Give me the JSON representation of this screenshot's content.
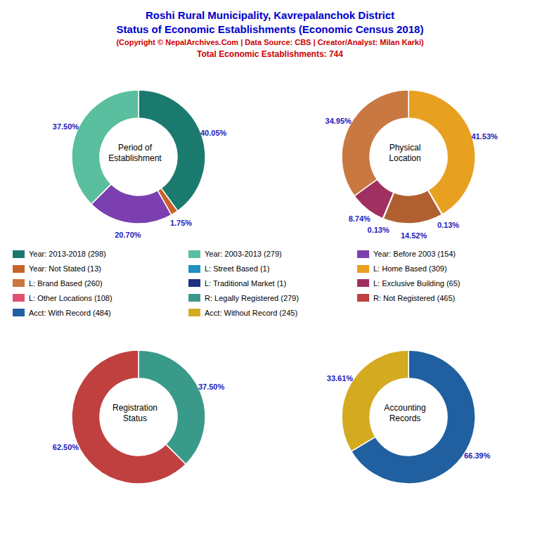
{
  "title": "Roshi Rural Municipality, Kavrepalanchok District\nStatus of Economic Establishments (Economic Census 2018)",
  "subtitle": "(Copyright © NepalArchives.Com | Data Source: CBS | Creator/Analyst: Milan Karki)\nTotal Economic Establishments: 744",
  "chart_data": [
    {
      "type": "pie",
      "title": "Period of\nEstablishment",
      "values": [
        40.05,
        1.75,
        20.7,
        37.5
      ],
      "value_labels": [
        "40.05%",
        "1.75%",
        "20.70%",
        "37.50%"
      ],
      "colors": [
        "#1a7a6e",
        "#c8622a",
        "#7b3fb0",
        "#5abf9e"
      ],
      "data_labels": true
    },
    {
      "type": "pie",
      "title": "Physical\nLocation",
      "values": [
        41.53,
        0.13,
        14.52,
        0.13,
        8.74,
        34.95
      ],
      "value_labels": [
        "41.53%",
        "0.13%",
        "14.52%",
        "0.13%",
        "8.74%",
        "34.95%"
      ],
      "colors": [
        "#e8a020",
        "#e05070",
        "#b06030",
        "#203080",
        "#a03060",
        "#c87840"
      ],
      "data_labels": true
    },
    {
      "type": "pie",
      "title": "Registration\nStatus",
      "values": [
        37.5,
        62.5
      ],
      "value_labels": [
        "37.50%",
        "62.50%"
      ],
      "colors": [
        "#3a9a8a",
        "#c04040"
      ],
      "data_labels": true
    },
    {
      "type": "pie",
      "title": "Accounting\nRecords",
      "values": [
        66.39,
        33.61
      ],
      "value_labels": [
        "66.39%",
        "33.61%"
      ],
      "colors": [
        "#2060a0",
        "#d4aa20"
      ],
      "data_labels": true
    }
  ],
  "legend_entries": [
    {
      "name": "Year: 2013-2018 (298)",
      "color": "#1a7a6e"
    },
    {
      "name": "Year: 2003-2013 (279)",
      "color": "#5abf9e"
    },
    {
      "name": "Year: Before 2003 (154)",
      "color": "#7b3fb0"
    },
    {
      "name": "Year: Not Stated (13)",
      "color": "#c8622a"
    },
    {
      "name": "L: Street Based (1)",
      "color": "#2090c0"
    },
    {
      "name": "L: Home Based (309)",
      "color": "#e8a020"
    },
    {
      "name": "L: Brand Based (260)",
      "color": "#c87840"
    },
    {
      "name": "L: Traditional Market (1)",
      "color": "#203080"
    },
    {
      "name": "L: Exclusive Building (65)",
      "color": "#a03060"
    },
    {
      "name": "L: Other Locations (108)",
      "color": "#e05070"
    },
    {
      "name": "R: Legally Registered (279)",
      "color": "#3a9a8a"
    },
    {
      "name": "R: Not Registered (465)",
      "color": "#c04040"
    },
    {
      "name": "Acct: With Record (484)",
      "color": "#2060a0"
    },
    {
      "name": "Acct: Without Record (245)",
      "color": "#d4aa20"
    }
  ]
}
